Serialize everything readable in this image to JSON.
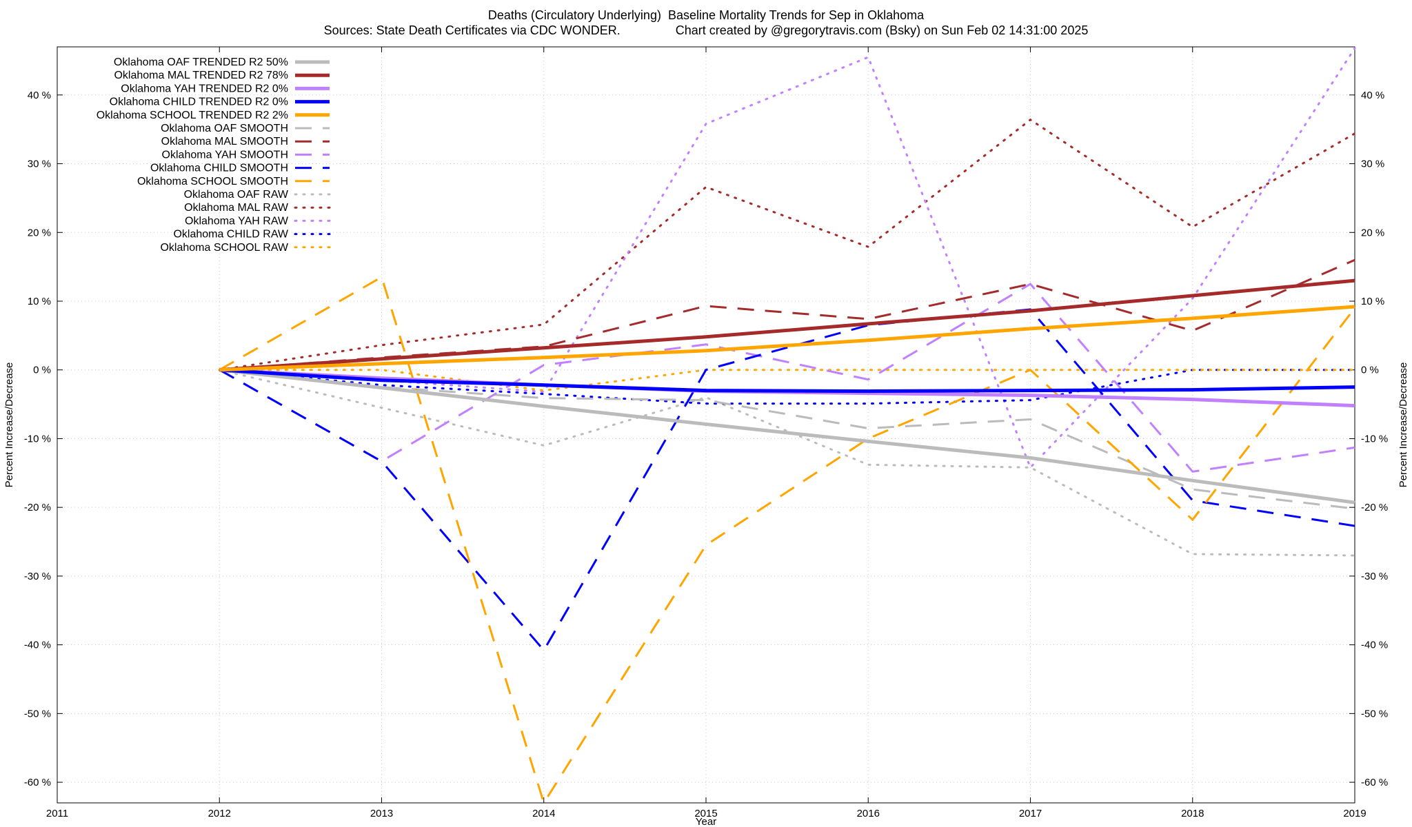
{
  "chart_data": {
    "type": "line",
    "title": "Deaths (Circulatory Underlying)  Baseline Mortality Trends for Sep in Oklahoma",
    "subtitle": "Sources: State Death Certificates via CDC WONDER.                Chart created by @gregorytravis.com (Bsky) on Sun Feb 02 14:31:00 2025",
    "xlabel": "Year",
    "ylabel": "Percent Increase/Decrease",
    "xlim": [
      2011,
      2019
    ],
    "ylim": [
      -63,
      47
    ],
    "xticks": [
      2011,
      2012,
      2013,
      2014,
      2015,
      2016,
      2017,
      2018,
      2019
    ],
    "xtick_labels": [
      "2011",
      "2012",
      "2013",
      "2014",
      "2015",
      "2016",
      "2017",
      "2018",
      "2019"
    ],
    "yticks": [
      -60,
      -50,
      -40,
      -30,
      -20,
      -10,
      0,
      10,
      20,
      30,
      40
    ],
    "ytick_labels": [
      "-60 %",
      "-50 %",
      "-40 %",
      "-30 %",
      "-20 %",
      "-10 %",
      "0 %",
      "10 %",
      "20 %",
      "30 %",
      "40 %"
    ],
    "grid": true,
    "legend_position": "top-left",
    "series": [
      {
        "name": "Oklahoma OAF TRENDED R2  50%",
        "style": "solid",
        "color": "#bbbbbb",
        "x": [
          2012,
          2013,
          2014,
          2015,
          2016,
          2017,
          2018,
          2019
        ],
        "y": [
          0,
          -2.6,
          -5.3,
          -7.9,
          -10.4,
          -12.8,
          -16.1,
          -19.3
        ]
      },
      {
        "name": "Oklahoma MAL TRENDED R2  78%",
        "style": "solid",
        "color": "#a52a2a",
        "x": [
          2012,
          2013,
          2014,
          2015,
          2016,
          2017,
          2018,
          2019
        ],
        "y": [
          0,
          1.6,
          3.2,
          4.8,
          6.7,
          8.6,
          10.8,
          13.0
        ]
      },
      {
        "name": "Oklahoma YAH TRENDED R2   0%",
        "style": "solid",
        "color": "#c080ff",
        "x": [
          2012,
          2013,
          2014,
          2015,
          2016,
          2017,
          2018,
          2019
        ],
        "y": [
          0,
          -1.2,
          -2.2,
          -3.1,
          -3.4,
          -3.7,
          -4.3,
          -5.2
        ]
      },
      {
        "name": "Oklahoma CHILD TRENDED R2   0%",
        "style": "solid",
        "color": "#0000ff",
        "x": [
          2012,
          2013,
          2014,
          2015,
          2016,
          2017,
          2018,
          2019
        ],
        "y": [
          0,
          -1.5,
          -2.2,
          -3.0,
          -3.1,
          -3.0,
          -2.9,
          -2.5
        ]
      },
      {
        "name": "Oklahoma SCHOOL TRENDED R2   2%",
        "style": "solid",
        "color": "#ffa500",
        "x": [
          2012,
          2013,
          2014,
          2015,
          2016,
          2017,
          2018,
          2019
        ],
        "y": [
          0,
          0.9,
          1.8,
          2.8,
          4.3,
          6.0,
          7.5,
          9.2
        ]
      },
      {
        "name": "Oklahoma OAF SMOOTH",
        "style": "dashed",
        "color": "#bbbbbb",
        "x": [
          2012,
          2013,
          2014,
          2015,
          2016,
          2017,
          2018,
          2019
        ],
        "y": [
          0,
          -2.5,
          -4.1,
          -4.4,
          -8.5,
          -7.2,
          -17.4,
          -20.2
        ]
      },
      {
        "name": "Oklahoma MAL SMOOTH",
        "style": "dashed",
        "color": "#a52a2a",
        "x": [
          2012,
          2013,
          2014,
          2015,
          2016,
          2017,
          2018,
          2019
        ],
        "y": [
          0,
          1.8,
          3.4,
          9.3,
          7.4,
          12.5,
          5.7,
          16.0
        ]
      },
      {
        "name": "Oklahoma YAH SMOOTH",
        "style": "dashed",
        "color": "#c080ff",
        "x": [
          2012,
          2013,
          2014,
          2015,
          2016,
          2017,
          2018,
          2019
        ],
        "y": [
          0,
          -13.3,
          0.7,
          3.7,
          -1.4,
          12.5,
          -14.8,
          -11.3
        ]
      },
      {
        "name": "Oklahoma CHILD SMOOTH",
        "style": "dashed",
        "color": "#0000ff",
        "x": [
          2012,
          2013,
          2014,
          2015,
          2016,
          2017,
          2018,
          2019
        ],
        "y": [
          0,
          -13.3,
          -40.8,
          0.0,
          6.5,
          8.8,
          -19.0,
          -22.7
        ]
      },
      {
        "name": "Oklahoma SCHOOL SMOOTH",
        "style": "dashed",
        "color": "#ffa500",
        "x": [
          2012,
          2013,
          2014,
          2015,
          2016,
          2017,
          2018,
          2019
        ],
        "y": [
          0,
          13.5,
          -63.0,
          -25.5,
          -10.0,
          0.0,
          -21.8,
          9.0
        ]
      },
      {
        "name": "Oklahoma OAF RAW",
        "style": "dotted",
        "color": "#bbbbbb",
        "x": [
          2012,
          2013,
          2014,
          2015,
          2016,
          2017,
          2018,
          2019
        ],
        "y": [
          0,
          -5.5,
          -11.0,
          -4.0,
          -13.8,
          -14.2,
          -26.8,
          -27.0
        ]
      },
      {
        "name": "Oklahoma MAL RAW",
        "style": "dotted",
        "color": "#a52a2a",
        "x": [
          2012,
          2013,
          2014,
          2015,
          2016,
          2017,
          2018,
          2019
        ],
        "y": [
          0,
          3.6,
          6.6,
          26.6,
          17.9,
          36.4,
          20.8,
          34.4
        ]
      },
      {
        "name": "Oklahoma YAH RAW",
        "style": "dotted",
        "color": "#c080ff",
        "x": [
          2012,
          2013,
          2014,
          2015,
          2016,
          2017,
          2018,
          2019
        ],
        "y": [
          0,
          -1.5,
          -3.2,
          35.8,
          45.5,
          -14.2,
          10.4,
          46.8
        ]
      },
      {
        "name": "Oklahoma CHILD RAW",
        "style": "dotted",
        "color": "#0000ff",
        "x": [
          2012,
          2013,
          2014,
          2015,
          2016,
          2017,
          2018,
          2019
        ],
        "y": [
          0,
          -2.2,
          -3.5,
          -4.9,
          -4.9,
          -4.4,
          0.0,
          0.0
        ]
      },
      {
        "name": "Oklahoma SCHOOL RAW",
        "style": "dotted",
        "color": "#ffa500",
        "x": [
          2012,
          2013,
          2014,
          2015,
          2016,
          2017,
          2018,
          2019
        ],
        "y": [
          0,
          0.0,
          -3.0,
          0.0,
          0.0,
          0.0,
          0.0,
          0.0
        ]
      }
    ]
  }
}
